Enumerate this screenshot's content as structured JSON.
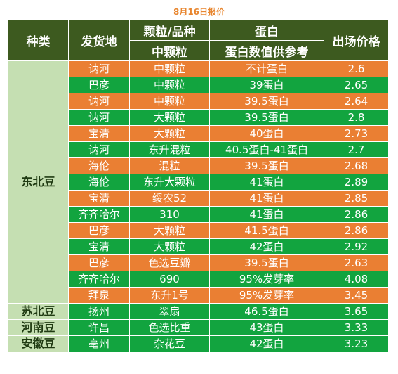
{
  "caption": "8月16日报价",
  "headers": {
    "category": "种类",
    "origin": "发货地",
    "grain_top": "颗粒/品种",
    "grain_bottom": "中颗粒",
    "protein_top": "蛋白",
    "protein_bottom": "蛋白数值供参考",
    "price": "出场价格"
  },
  "colors": {
    "header": "#3d5a1f",
    "green": "#12a43f",
    "orange": "#ea7f33",
    "category": "#c5dfb2"
  },
  "groups": [
    {
      "category": "东北豆",
      "rows": [
        {
          "origin": "讷河",
          "grain": "中颗粒",
          "protein": "不计蛋白",
          "price": "2.6",
          "color": "orange"
        },
        {
          "origin": "巴彦",
          "grain": "中颗粒",
          "protein": "39蛋白",
          "price": "2.65",
          "color": "green"
        },
        {
          "origin": "讷河",
          "grain": "中颗粒",
          "protein": "39.5蛋白",
          "price": "2.64",
          "color": "orange"
        },
        {
          "origin": "讷河",
          "grain": "大颗粒",
          "protein": "39.5蛋白",
          "price": "2.8",
          "color": "green"
        },
        {
          "origin": "宝清",
          "grain": "大颗粒",
          "protein": "40蛋白",
          "price": "2.73",
          "color": "orange"
        },
        {
          "origin": "讷河",
          "grain": "东升混粒",
          "protein": "40.5蛋白-41蛋白",
          "price": "2.7",
          "color": "green"
        },
        {
          "origin": "海伦",
          "grain": "混粒",
          "protein": "39.5蛋白",
          "price": "2.68",
          "color": "orange"
        },
        {
          "origin": "海伦",
          "grain": "东升大颗粒",
          "protein": "41蛋白",
          "price": "2.89",
          "color": "green"
        },
        {
          "origin": "宝清",
          "grain": "绥农52",
          "protein": "41蛋白",
          "price": "2.85",
          "color": "orange"
        },
        {
          "origin": "齐齐哈尔",
          "grain": "310",
          "protein": "41蛋白",
          "price": "2.86",
          "color": "green"
        },
        {
          "origin": "巴彦",
          "grain": "大颗粒",
          "protein": "41.5蛋白",
          "price": "2.86",
          "color": "orange"
        },
        {
          "origin": "宝清",
          "grain": "大颗粒",
          "protein": "42蛋白",
          "price": "2.92",
          "color": "green"
        },
        {
          "origin": "巴彦",
          "grain": "色选豆瓣",
          "protein": "39.5蛋白",
          "price": "2.63",
          "color": "orange"
        },
        {
          "origin": "齐齐哈尔",
          "grain": "690",
          "protein": "95%发芽率",
          "price": "4.08",
          "color": "green"
        },
        {
          "origin": "拜泉",
          "grain": "东升1号",
          "protein": "95%发芽率",
          "price": "3.45",
          "color": "orange"
        }
      ]
    },
    {
      "category": "苏北豆",
      "rows": [
        {
          "origin": "扬州",
          "grain": "翠扇",
          "protein": "46.5蛋白",
          "price": "3.65",
          "color": "green"
        }
      ]
    },
    {
      "category": "河南豆",
      "rows": [
        {
          "origin": "许昌",
          "grain": "色选比重",
          "protein": "43蛋白",
          "price": "3.33",
          "color": "green"
        }
      ]
    },
    {
      "category": "安徽豆",
      "rows": [
        {
          "origin": "亳州",
          "grain": "杂花豆",
          "protein": "42蛋白",
          "price": "3.23",
          "color": "green"
        }
      ]
    }
  ]
}
